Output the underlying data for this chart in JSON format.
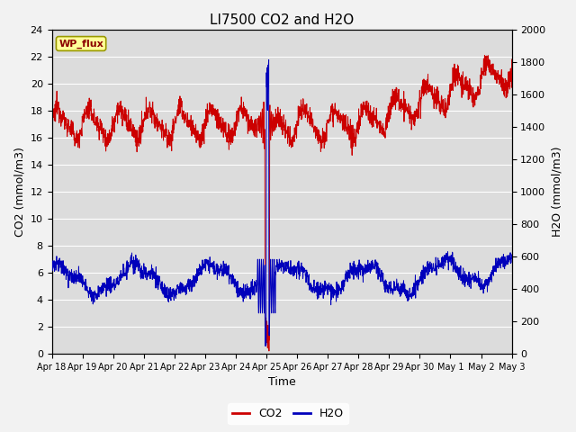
{
  "title": "LI7500 CO2 and H2O",
  "xlabel": "Time",
  "ylabel_left": "CO2 (mmol/m3)",
  "ylabel_right": "H2O (mmol/m3)",
  "annotation": "WP_flux",
  "co2_ylim": [
    0,
    24
  ],
  "h2o_ylim": [
    0,
    2000
  ],
  "co2_yticks": [
    0,
    2,
    4,
    6,
    8,
    10,
    12,
    14,
    16,
    18,
    20,
    22,
    24
  ],
  "h2o_yticks": [
    0,
    200,
    400,
    600,
    800,
    1000,
    1200,
    1400,
    1600,
    1800,
    2000
  ],
  "xtick_labels": [
    "Apr 18",
    "Apr 19",
    "Apr 20",
    "Apr 21",
    "Apr 22",
    "Apr 23",
    "Apr 24",
    "Apr 25",
    "Apr 26",
    "Apr 27",
    "Apr 28",
    "Apr 29",
    "Apr 30",
    "May 1",
    "May 2",
    "May 3"
  ],
  "co2_color": "#CC0000",
  "h2o_color": "#0000BB",
  "plot_bg_color": "#DCDCDC",
  "grid_color": "#FFFFFF",
  "annotation_bg": "#FFFF99",
  "annotation_border": "#999900",
  "fig_bg_color": "#F2F2F2"
}
